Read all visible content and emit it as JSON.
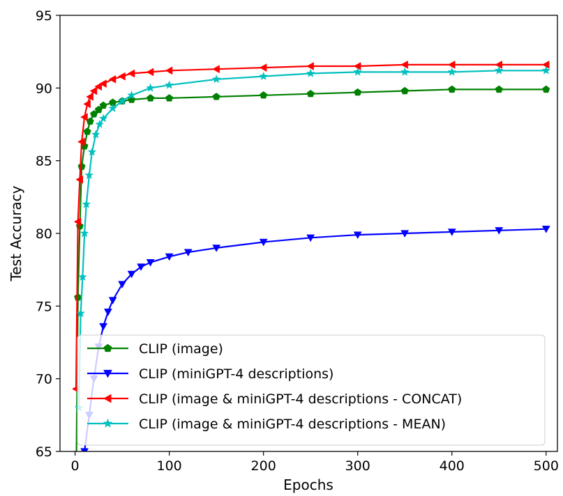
{
  "chart_data": {
    "type": "line",
    "title": "",
    "xlabel": "Epochs",
    "ylabel": "Test Accuracy",
    "xlim": [
      -16,
      512
    ],
    "ylim": [
      65,
      95
    ],
    "xticks": [
      "0",
      "100",
      "200",
      "300",
      "400",
      "500"
    ],
    "yticks": [
      "65",
      "70",
      "75",
      "80",
      "85",
      "90",
      "95"
    ],
    "grid": false,
    "legend_position": "lower-left",
    "series": [
      {
        "name": "CLIP (image)",
        "color": "#008000",
        "marker": "pentagon",
        "x": [
          1,
          3,
          5,
          7,
          10,
          13,
          16,
          20,
          25,
          30,
          40,
          50,
          60,
          80,
          100,
          150,
          200,
          250,
          300,
          350,
          400,
          450,
          500
        ],
        "y": [
          62.0,
          75.6,
          80.5,
          84.6,
          86.0,
          87.0,
          87.7,
          88.2,
          88.5,
          88.8,
          89.0,
          89.1,
          89.2,
          89.3,
          89.3,
          89.4,
          89.5,
          89.6,
          89.7,
          89.8,
          89.9,
          89.9,
          89.9
        ]
      },
      {
        "name": "CLIP (miniGPT-4 descriptions)",
        "color": "#0000ff",
        "marker": "triangle-down",
        "x": [
          10,
          15,
          20,
          25,
          30,
          35,
          40,
          50,
          60,
          70,
          80,
          100,
          120,
          150,
          200,
          250,
          300,
          350,
          400,
          450,
          500
        ],
        "y": [
          65.0,
          67.5,
          70.0,
          72.2,
          73.6,
          74.6,
          75.4,
          76.5,
          77.2,
          77.7,
          78.0,
          78.4,
          78.7,
          79.0,
          79.4,
          79.7,
          79.9,
          80.0,
          80.1,
          80.2,
          80.3
        ]
      },
      {
        "name": "CLIP (image & miniGPT-4 descriptions - CONCAT)",
        "color": "#ff0000",
        "marker": "triangle-left",
        "x": [
          1,
          3,
          5,
          7,
          10,
          13,
          16,
          20,
          25,
          30,
          40,
          50,
          60,
          80,
          100,
          150,
          200,
          250,
          300,
          350,
          400,
          450,
          500
        ],
        "y": [
          69.3,
          80.8,
          83.7,
          86.3,
          88.0,
          88.9,
          89.4,
          89.8,
          90.1,
          90.3,
          90.6,
          90.8,
          91.0,
          91.1,
          91.2,
          91.3,
          91.4,
          91.5,
          91.5,
          91.6,
          91.6,
          91.6,
          91.6
        ]
      },
      {
        "name": "CLIP (image & miniGPT-4 descriptions - MEAN)",
        "color": "#00bfbf",
        "marker": "star",
        "x": [
          4,
          6,
          8,
          10,
          12,
          15,
          18,
          22,
          26,
          30,
          40,
          50,
          60,
          80,
          100,
          150,
          200,
          250,
          300,
          350,
          400,
          450,
          500
        ],
        "y": [
          68.0,
          74.5,
          77.0,
          80.0,
          82.0,
          84.0,
          85.6,
          86.8,
          87.5,
          87.9,
          88.6,
          89.1,
          89.5,
          90.0,
          90.2,
          90.6,
          90.8,
          91.0,
          91.1,
          91.1,
          91.1,
          91.2,
          91.2
        ]
      }
    ]
  }
}
